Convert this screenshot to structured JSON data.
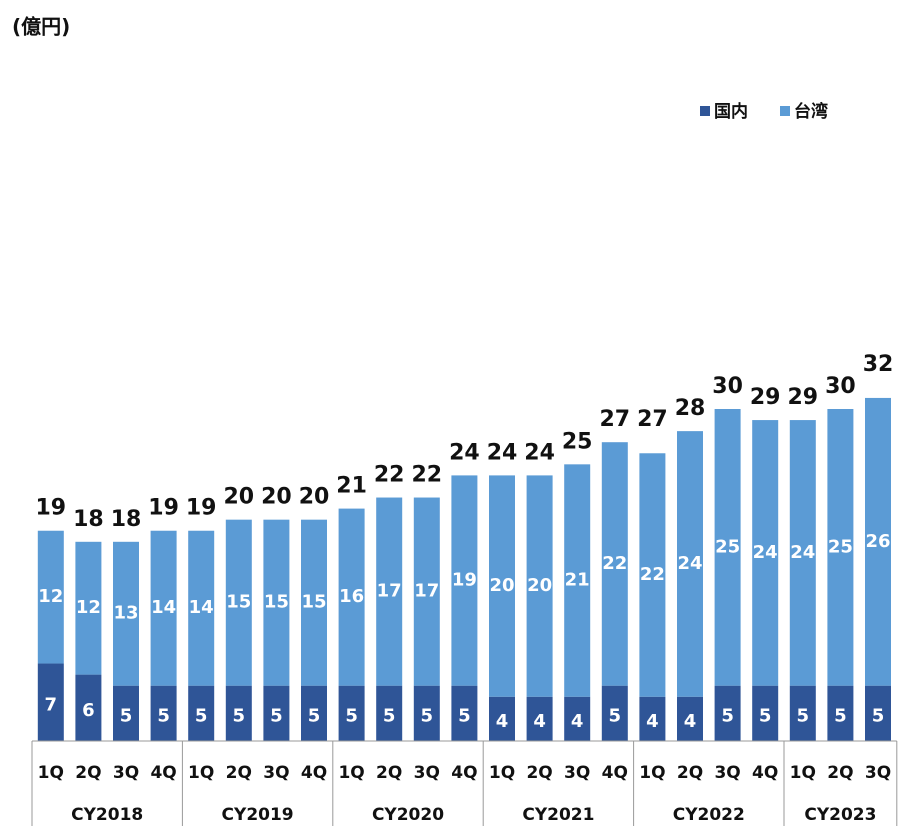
{
  "chart_data": {
    "type": "stacked_bar",
    "title": "(億円)",
    "groups": [
      {
        "name": "CY2018",
        "categories": [
          "1Q",
          "2Q",
          "3Q",
          "4Q"
        ]
      },
      {
        "name": "CY2019",
        "categories": [
          "1Q",
          "2Q",
          "3Q",
          "4Q"
        ]
      },
      {
        "name": "CY2020",
        "categories": [
          "1Q",
          "2Q",
          "3Q",
          "4Q"
        ]
      },
      {
        "name": "CY2021",
        "categories": [
          "1Q",
          "2Q",
          "3Q",
          "4Q"
        ]
      },
      {
        "name": "CY2022",
        "categories": [
          "1Q",
          "2Q",
          "3Q",
          "4Q"
        ]
      },
      {
        "name": "CY2023",
        "categories": [
          "1Q",
          "2Q",
          "3Q"
        ]
      }
    ],
    "series": [
      {
        "name": "国内",
        "color": "#2f5597",
        "values": [
          7,
          6,
          5,
          5,
          5,
          5,
          5,
          5,
          5,
          5,
          5,
          5,
          4,
          4,
          4,
          5,
          4,
          4,
          5,
          5,
          5,
          5,
          5
        ]
      },
      {
        "name": "台湾",
        "color": "#5b9bd5",
        "values": [
          12,
          12,
          13,
          14,
          14,
          15,
          15,
          15,
          16,
          17,
          17,
          19,
          20,
          20,
          21,
          22,
          22,
          24,
          25,
          24,
          24,
          25,
          26
        ]
      }
    ],
    "totals": [
      19,
      18,
      18,
      19,
      19,
      20,
      20,
      20,
      21,
      22,
      22,
      24,
      24,
      24,
      25,
      27,
      27,
      28,
      30,
      29,
      29,
      30,
      32
    ],
    "ylim": [
      0,
      60
    ],
    "legend": "top-right"
  }
}
